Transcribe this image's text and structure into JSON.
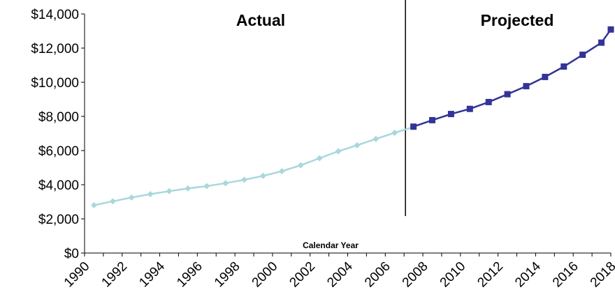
{
  "chart_data": {
    "type": "line",
    "title": "",
    "xlabel": "Calendar Year",
    "ylabel": "",
    "ylim": [
      0,
      14000
    ],
    "y_ticks": [
      "$0",
      "$2,000",
      "$4,000",
      "$6,000",
      "$8,000",
      "$10,000",
      "$12,000",
      "$14,000"
    ],
    "y_tick_values": [
      0,
      2000,
      4000,
      6000,
      8000,
      10000,
      12000,
      14000
    ],
    "x_tick_labels": [
      "1990",
      "1992",
      "1994",
      "1996",
      "1998",
      "2000",
      "2002",
      "2004",
      "2006",
      "2008",
      "2010",
      "2012",
      "2014",
      "2016",
      "2018"
    ],
    "x_range": [
      1990,
      2018
    ],
    "grid": false,
    "legend": "none",
    "section_labels": {
      "actual": "Actual",
      "projected": "Projected"
    },
    "divider_x": 2007,
    "series": [
      {
        "name": "Actual",
        "color": "#a8d8dc",
        "marker": "diamond",
        "x": [
          1990,
          1991,
          1992,
          1993,
          1994,
          1995,
          1996,
          1997,
          1998,
          1999,
          2000,
          2001,
          2002,
          2003,
          2004,
          2005,
          2006,
          2007
        ],
        "values": [
          2800,
          3030,
          3250,
          3450,
          3620,
          3780,
          3920,
          4090,
          4290,
          4520,
          4790,
          5140,
          5550,
          5960,
          6310,
          6680,
          7040,
          7380
        ]
      },
      {
        "name": "Projected",
        "color": "#333399",
        "marker": "square",
        "x": [
          2007,
          2008,
          2009,
          2010,
          2011,
          2012,
          2013,
          2014,
          2015,
          2016,
          2017,
          2018
        ],
        "values": [
          7400,
          7780,
          8140,
          8440,
          8840,
          9300,
          9770,
          10310,
          10920,
          11610,
          12320,
          13090
        ]
      }
    ]
  }
}
